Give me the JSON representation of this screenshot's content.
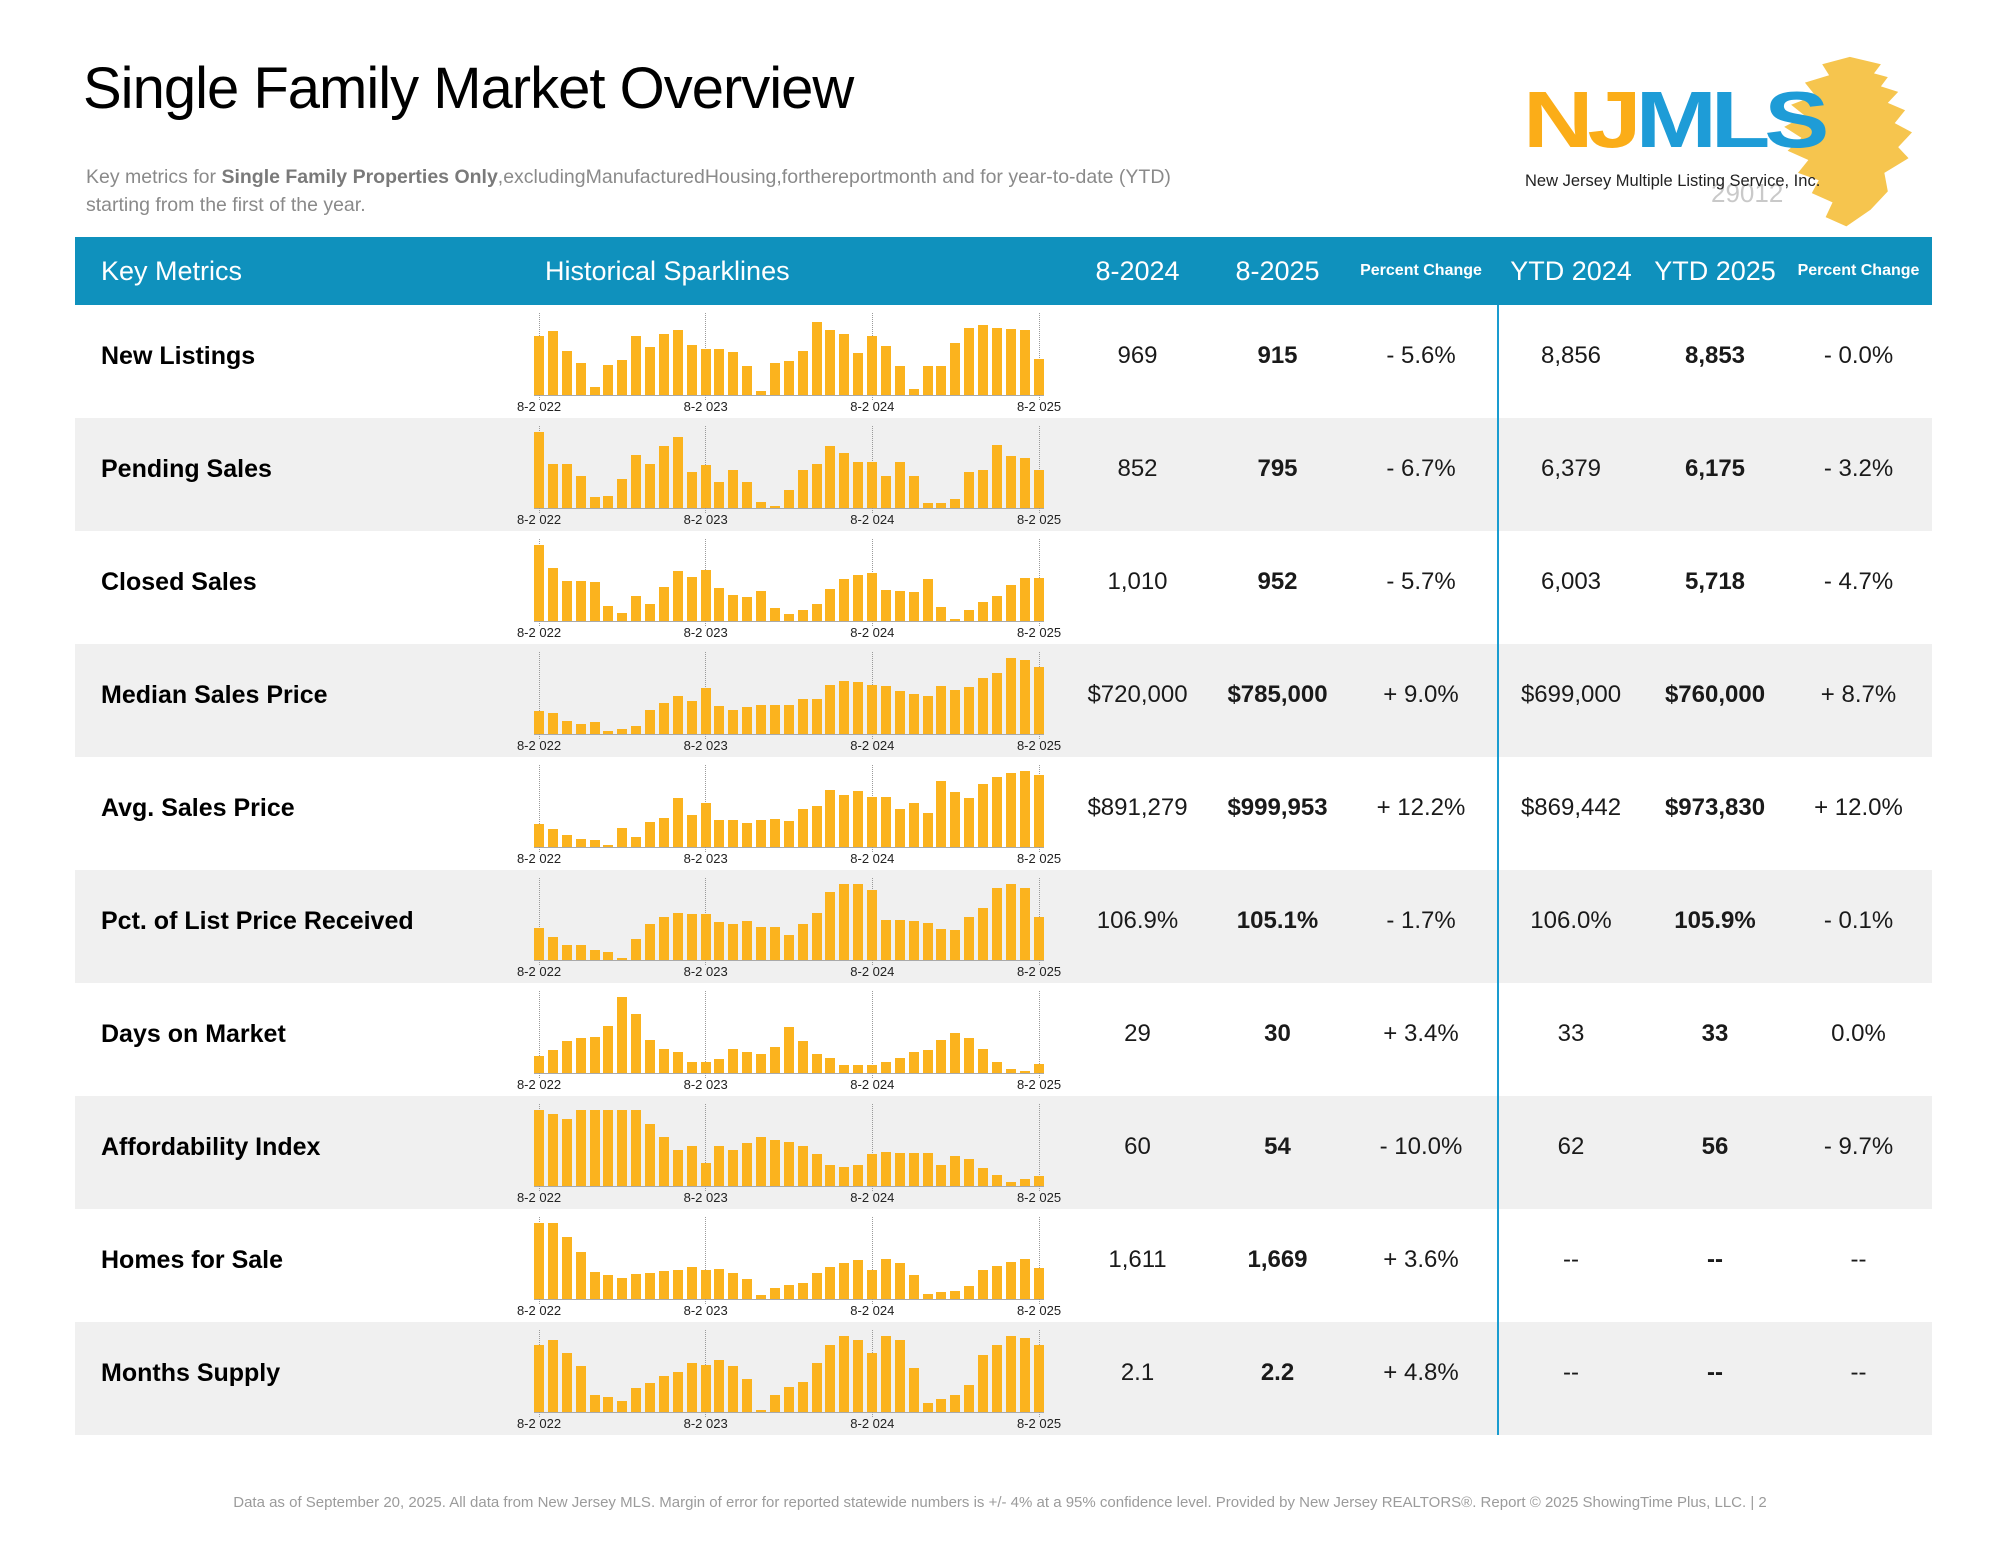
{
  "page": {
    "title": "Single Family Market Overview",
    "subtitle_prefix": "Key metrics for ",
    "subtitle_bold": "Single Family Properties Only",
    "subtitle_line1_rest": ",excludingManufacturedHousing,forthereportmonth and for year-to-date (YTD)",
    "subtitle_line2": "starting from the first of the year."
  },
  "logo": {
    "nj": "NJ",
    "mls": "MLS",
    "tagline": "New Jersey Multiple Listing Service, Inc.",
    "watermark": "29012"
  },
  "table": {
    "headers": {
      "key_metrics": "Key Metrics",
      "sparklines": "Historical Sparklines",
      "month_prior": "8-2024",
      "month_current": "8-2025",
      "percent_change": "Percent Change",
      "ytd_prior": "YTD 2024",
      "ytd_current": "YTD 2025",
      "percent_change_ytd": "Percent Change"
    },
    "axis_labels": [
      "8-2 022",
      "8-2 023",
      "8-2 024",
      "8-2 025"
    ],
    "rows": [
      {
        "metric": "New Listings",
        "m2024": "969",
        "m2025": "915",
        "pct": "- 5.6%",
        "ytd2024": "8,856",
        "ytd2025": "8,853",
        "ytd_pct": "- 0.0%",
        "spark": [
          0.78,
          0.84,
          0.58,
          0.42,
          0.1,
          0.4,
          0.46,
          0.78,
          0.63,
          0.8,
          0.86,
          0.66,
          0.6,
          0.6,
          0.56,
          0.38,
          0.05,
          0.42,
          0.45,
          0.58,
          0.96,
          0.85,
          0.8,
          0.55,
          0.78,
          0.65,
          0.38,
          0.08,
          0.38,
          0.38,
          0.68,
          0.88,
          0.92,
          0.88,
          0.87,
          0.86,
          0.48
        ]
      },
      {
        "metric": "Pending Sales",
        "m2024": "852",
        "m2025": "795",
        "pct": "- 6.7%",
        "ytd2024": "6,379",
        "ytd2025": "6,175",
        "ytd_pct": "- 3.2%",
        "spark": [
          1.0,
          0.58,
          0.58,
          0.42,
          0.15,
          0.16,
          0.38,
          0.7,
          0.58,
          0.82,
          0.93,
          0.48,
          0.57,
          0.34,
          0.5,
          0.34,
          0.08,
          0.03,
          0.24,
          0.5,
          0.58,
          0.82,
          0.72,
          0.6,
          0.6,
          0.42,
          0.6,
          0.42,
          0.07,
          0.06,
          0.12,
          0.48,
          0.5,
          0.83,
          0.68,
          0.66,
          0.5
        ]
      },
      {
        "metric": "Closed Sales",
        "m2024": "1,010",
        "m2025": "952",
        "pct": "- 5.7%",
        "ytd2024": "6,003",
        "ytd2025": "5,718",
        "ytd_pct": "- 4.7%",
        "spark": [
          1.0,
          0.7,
          0.53,
          0.53,
          0.51,
          0.2,
          0.1,
          0.33,
          0.22,
          0.45,
          0.66,
          0.58,
          0.67,
          0.44,
          0.34,
          0.31,
          0.4,
          0.17,
          0.09,
          0.14,
          0.22,
          0.42,
          0.55,
          0.6,
          0.63,
          0.41,
          0.4,
          0.38,
          0.55,
          0.18,
          0.03,
          0.14,
          0.25,
          0.33,
          0.47,
          0.57,
          0.57
        ]
      },
      {
        "metric": "Median Sales Price",
        "m2024": "$720,000",
        "m2025": "$785,000",
        "pct": "+ 9.0%",
        "ytd2024": "$699,000",
        "ytd2025": "$760,000",
        "ytd_pct": "+ 8.7%",
        "spark": [
          0.3,
          0.28,
          0.17,
          0.13,
          0.16,
          0.04,
          0.07,
          0.11,
          0.32,
          0.41,
          0.5,
          0.44,
          0.6,
          0.37,
          0.32,
          0.36,
          0.38,
          0.38,
          0.38,
          0.46,
          0.46,
          0.65,
          0.7,
          0.68,
          0.65,
          0.63,
          0.56,
          0.53,
          0.5,
          0.63,
          0.58,
          0.62,
          0.74,
          0.8,
          1.0,
          0.97,
          0.88
        ]
      },
      {
        "metric": "Avg. Sales Price",
        "m2024": "$891,279",
        "m2025": "$999,953",
        "pct": "+ 12.2%",
        "ytd2024": "$869,442",
        "ytd2025": "$973,830",
        "ytd_pct": "+ 12.0%",
        "spark": [
          0.3,
          0.24,
          0.16,
          0.11,
          0.09,
          0.03,
          0.25,
          0.13,
          0.33,
          0.38,
          0.65,
          0.42,
          0.58,
          0.35,
          0.35,
          0.32,
          0.36,
          0.37,
          0.34,
          0.5,
          0.54,
          0.75,
          0.69,
          0.74,
          0.66,
          0.66,
          0.5,
          0.58,
          0.45,
          0.87,
          0.73,
          0.64,
          0.83,
          0.92,
          0.97,
          1.0,
          0.95
        ]
      },
      {
        "metric": "Pct. of List Price Received",
        "m2024": "106.9%",
        "m2025": "105.1%",
        "pct": "- 1.7%",
        "ytd2024": "106.0%",
        "ytd2025": "105.9%",
        "ytd_pct": "- 0.1%",
        "spark": [
          0.42,
          0.3,
          0.2,
          0.2,
          0.13,
          0.11,
          0.03,
          0.28,
          0.47,
          0.56,
          0.62,
          0.6,
          0.61,
          0.5,
          0.47,
          0.51,
          0.44,
          0.44,
          0.33,
          0.47,
          0.62,
          0.9,
          1.0,
          1.0,
          0.92,
          0.52,
          0.53,
          0.51,
          0.49,
          0.41,
          0.4,
          0.57,
          0.68,
          0.95,
          1.0,
          0.95,
          0.56
        ]
      },
      {
        "metric": "Days on Market",
        "m2024": "29",
        "m2025": "30",
        "pct": "+ 3.4%",
        "ytd2024": "33",
        "ytd2025": "33",
        "ytd_pct": "0.0%",
        "spark": [
          0.22,
          0.3,
          0.42,
          0.46,
          0.48,
          0.62,
          1.0,
          0.78,
          0.44,
          0.32,
          0.28,
          0.15,
          0.15,
          0.18,
          0.32,
          0.28,
          0.25,
          0.34,
          0.6,
          0.42,
          0.25,
          0.2,
          0.1,
          0.11,
          0.1,
          0.15,
          0.2,
          0.28,
          0.3,
          0.44,
          0.53,
          0.46,
          0.32,
          0.14,
          0.05,
          0.03,
          0.12
        ]
      },
      {
        "metric": "Affordability Index",
        "m2024": "60",
        "m2025": "54",
        "pct": "- 10.0%",
        "ytd2024": "62",
        "ytd2025": "56",
        "ytd_pct": "- 9.7%",
        "spark": [
          1.0,
          0.95,
          0.88,
          1.0,
          1.0,
          1.0,
          1.0,
          1.0,
          0.82,
          0.65,
          0.48,
          0.52,
          0.3,
          0.52,
          0.48,
          0.56,
          0.65,
          0.6,
          0.58,
          0.52,
          0.42,
          0.28,
          0.25,
          0.28,
          0.42,
          0.45,
          0.44,
          0.44,
          0.44,
          0.28,
          0.4,
          0.35,
          0.24,
          0.15,
          0.05,
          0.09,
          0.13
        ]
      },
      {
        "metric": "Homes for Sale",
        "m2024": "1,611",
        "m2025": "1,669",
        "pct": "+ 3.6%",
        "ytd2024": "--",
        "ytd2025": "--",
        "ytd_pct": "--",
        "spark": [
          1.0,
          1.0,
          0.82,
          0.62,
          0.35,
          0.32,
          0.28,
          0.33,
          0.34,
          0.37,
          0.38,
          0.42,
          0.38,
          0.4,
          0.34,
          0.26,
          0.05,
          0.14,
          0.19,
          0.21,
          0.34,
          0.42,
          0.47,
          0.51,
          0.38,
          0.52,
          0.47,
          0.32,
          0.07,
          0.09,
          0.11,
          0.17,
          0.38,
          0.43,
          0.49,
          0.53,
          0.41
        ]
      },
      {
        "metric": "Months Supply",
        "m2024": "2.1",
        "m2025": "2.2",
        "pct": "+ 4.8%",
        "ytd2024": "--",
        "ytd2025": "--",
        "ytd_pct": "--",
        "spark": [
          0.88,
          0.95,
          0.78,
          0.6,
          0.22,
          0.2,
          0.15,
          0.32,
          0.38,
          0.47,
          0.52,
          0.65,
          0.62,
          0.68,
          0.6,
          0.43,
          0.03,
          0.23,
          0.33,
          0.4,
          0.65,
          0.88,
          1.0,
          0.95,
          0.78,
          1.0,
          0.95,
          0.58,
          0.12,
          0.17,
          0.22,
          0.35,
          0.75,
          0.88,
          1.0,
          0.97,
          0.88
        ]
      }
    ]
  },
  "footer": {
    "text": "Data as of September 20, 2025. All data from New Jersey MLS. Margin of error for reported statewide numbers is +/- 4% at a 95% confidence level. Provided by New Jersey REALTORS®. Report © 2025 ShowingTime Plus, LLC.",
    "page_label": "| 2"
  },
  "colors": {
    "header_bg": "#0F91BD",
    "bar": "#FBB31E",
    "row_alt": "#F0F0F0",
    "divider": "#1A9CD0",
    "logo_gold": "#FBAD18",
    "logo_blue": "#1E9CD7",
    "state_yellow": "#F6C54E"
  }
}
